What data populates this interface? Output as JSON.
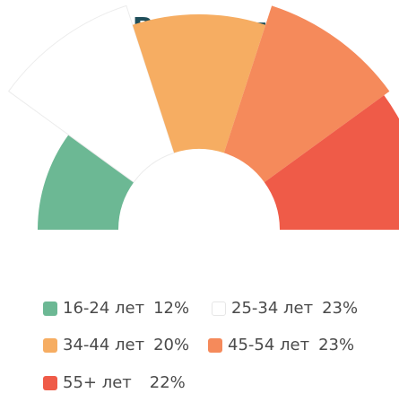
{
  "chart_data": {
    "type": "pie",
    "title": "Возраст",
    "categories": [
      "16-24 лет",
      "25-34 лет",
      "34-44 лет",
      "45-54 лет",
      "55+ лет"
    ],
    "values": [
      12,
      23,
      20,
      23,
      22
    ],
    "value_labels": [
      "12%",
      "23%",
      "20%",
      "23%",
      "22%"
    ],
    "colors": [
      "#6cb894",
      "#ffffff",
      "#f6ad62",
      "#f58a5b",
      "#ef5b48"
    ],
    "legend_position": "bottom"
  }
}
